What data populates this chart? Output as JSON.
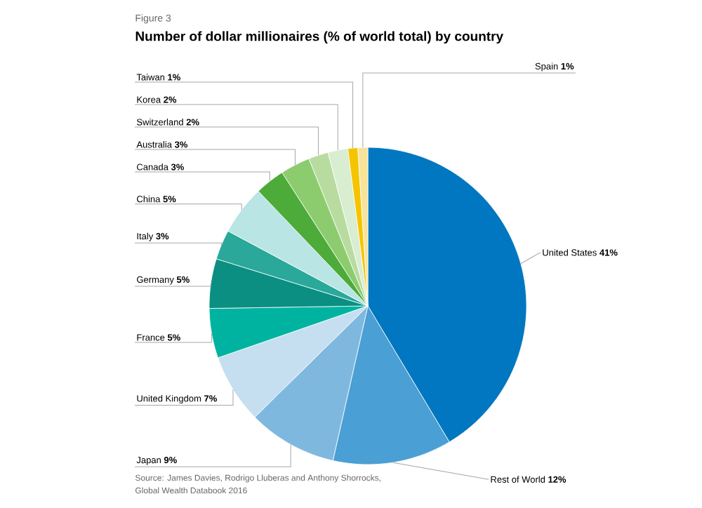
{
  "chart_data": {
    "type": "pie",
    "subtitle": "Figure 3",
    "title": "Number of dollar millionaires (% of world total) by country",
    "categories": [
      "United States",
      "Rest of World",
      "Japan",
      "United Kingdom",
      "France",
      "Germany",
      "Italy",
      "China",
      "Canada",
      "Australia",
      "Switzerland",
      "Korea",
      "Taiwan",
      "Spain"
    ],
    "values": [
      41,
      12,
      9,
      7,
      5,
      5,
      3,
      5,
      3,
      3,
      2,
      2,
      1,
      1
    ],
    "value_labels": [
      "41%",
      "12%",
      "9%",
      "7%",
      "5%",
      "5%",
      "3%",
      "5%",
      "3%",
      "3%",
      "2%",
      "2%",
      "1%",
      "1%"
    ],
    "colors": [
      "#0077c0",
      "#4a9fd4",
      "#7fb8df",
      "#c5dff0",
      "#00b3a0",
      "#0b8f82",
      "#2aa89a",
      "#b9e5e4",
      "#4dab3a",
      "#8ccc6e",
      "#b8dca0",
      "#d9edd0",
      "#f5c400",
      "#f8e39a"
    ],
    "annotations": [
      "Source: James Davies, Rodrigo Lluberas and Anthony Shorrocks,",
      "Global Wealth Databook 2016"
    ]
  }
}
